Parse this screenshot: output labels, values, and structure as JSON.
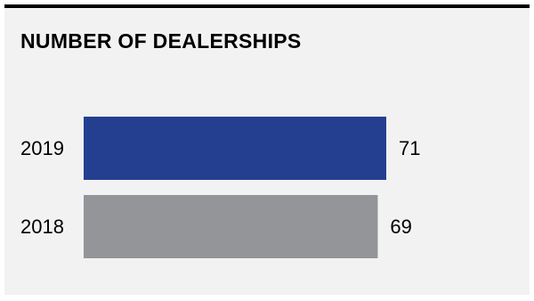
{
  "chart_data": {
    "type": "bar",
    "orientation": "horizontal",
    "title": "NUMBER OF DEALERSHIPS",
    "categories": [
      "2019",
      "2018"
    ],
    "values": [
      71,
      69
    ],
    "value_labels": [
      "71",
      "69"
    ],
    "bar_colors": [
      "#243f8f",
      "#939598"
    ],
    "xlim": [
      0,
      71
    ],
    "grid": false,
    "legend": "none"
  }
}
